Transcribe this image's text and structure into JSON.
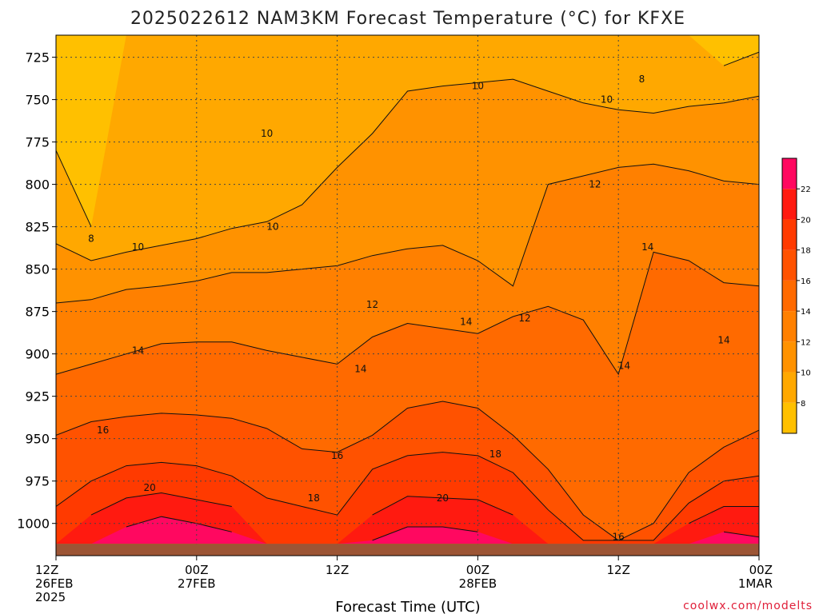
{
  "title": "2025022612 NAM3KM Forecast Temperature (°C) for KFXE",
  "credit": "coolwx.com/modelts",
  "chart_data": {
    "type": "heatmap",
    "title": "2025022612 NAM3KM Forecast Temperature (°C) for KFXE",
    "xlabel": "Forecast Time (UTC)",
    "ylabel": "",
    "x_ticks": [
      {
        "hour": 0,
        "line1": "12Z",
        "line2": "26FEB",
        "line3": "2025"
      },
      {
        "hour": 12,
        "line1": "00Z",
        "line2": "27FEB",
        "line3": ""
      },
      {
        "hour": 24,
        "line1": "12Z",
        "line2": "",
        "line3": ""
      },
      {
        "hour": 36,
        "line1": "00Z",
        "line2": "28FEB",
        "line3": ""
      },
      {
        "hour": 48,
        "line1": "12Z",
        "line2": "",
        "line3": ""
      },
      {
        "hour": 60,
        "line1": "00Z",
        "line2": "1MAR",
        "line3": ""
      }
    ],
    "xlim": [
      0,
      60
    ],
    "y_ticks": [
      725,
      750,
      775,
      800,
      825,
      850,
      875,
      900,
      925,
      950,
      975,
      1000
    ],
    "ylim": [
      1019,
      712
    ],
    "y_unit": "hPa",
    "grid": true,
    "colorbar": {
      "levels": [
        6,
        8,
        10,
        12,
        14,
        16,
        18,
        20,
        22,
        24
      ],
      "colors": [
        "#ffc000",
        "#ffa800",
        "#ff9200",
        "#ff8000",
        "#ff6a00",
        "#ff5200",
        "#ff3a00",
        "#ff1a10",
        "#ff0860"
      ],
      "labels": [
        8,
        10,
        12,
        14,
        16,
        18,
        20,
        22
      ]
    },
    "surface_pressure_hPa": 1012,
    "profile_hours": [
      0,
      3,
      6,
      9,
      12,
      15,
      18,
      21,
      24,
      27,
      30,
      33,
      36,
      39,
      42,
      45,
      48,
      51,
      54,
      57,
      60
    ],
    "isotherm_pressure_hPa": {
      "8": [
        780,
        825,
        null,
        null,
        null,
        null,
        null,
        null,
        null,
        null,
        null,
        null,
        null,
        null,
        null,
        null,
        null,
        null,
        null,
        730,
        722
      ],
      "10": [
        835,
        845,
        840,
        836,
        832,
        826,
        822,
        812,
        790,
        770,
        745,
        742,
        740,
        738,
        745,
        752,
        756,
        758,
        754,
        752,
        748
      ],
      "12": [
        870,
        868,
        862,
        860,
        857,
        852,
        852,
        850,
        848,
        842,
        838,
        836,
        845,
        860,
        800,
        795,
        790,
        788,
        792,
        798,
        800
      ],
      "14": [
        912,
        906,
        900,
        894,
        893,
        893,
        898,
        902,
        906,
        890,
        882,
        885,
        888,
        878,
        872,
        880,
        912,
        840,
        845,
        858,
        860
      ],
      "16": [
        948,
        940,
        937,
        935,
        936,
        938,
        944,
        956,
        958,
        948,
        932,
        928,
        932,
        948,
        968,
        995,
        1010,
        1000,
        970,
        955,
        945
      ],
      "18": [
        990,
        975,
        966,
        964,
        966,
        972,
        985,
        990,
        995,
        968,
        960,
        958,
        960,
        970,
        992,
        1010,
        1010,
        1010,
        988,
        975,
        972
      ],
      "20": [
        1012,
        995,
        985,
        982,
        986,
        990,
        1012,
        1012,
        1012,
        995,
        984,
        985,
        986,
        995,
        1012,
        1012,
        1012,
        1012,
        1000,
        990,
        990
      ],
      "22": [
        1012,
        1012,
        1002,
        996,
        1000,
        1005,
        1012,
        1012,
        1012,
        1010,
        1002,
        1002,
        1005,
        1012,
        1012,
        1012,
        1012,
        1012,
        1012,
        1005,
        1008
      ]
    },
    "contour_labels": [
      {
        "text": "8",
        "hour": 3.0,
        "p": 832
      },
      {
        "text": "8",
        "hour": 50.0,
        "p": 738
      },
      {
        "text": "10",
        "hour": 7.0,
        "p": 837
      },
      {
        "text": "10",
        "hour": 18.5,
        "p": 825
      },
      {
        "text": "10",
        "hour": 18.0,
        "p": 770
      },
      {
        "text": "10",
        "hour": 36.0,
        "p": 742
      },
      {
        "text": "10",
        "hour": 47.0,
        "p": 750
      },
      {
        "text": "12",
        "hour": 27.0,
        "p": 871
      },
      {
        "text": "12",
        "hour": 40.0,
        "p": 879
      },
      {
        "text": "12",
        "hour": 46.0,
        "p": 800
      },
      {
        "text": "14",
        "hour": 7.0,
        "p": 898
      },
      {
        "text": "14",
        "hour": 26.0,
        "p": 909
      },
      {
        "text": "14",
        "hour": 35.0,
        "p": 881
      },
      {
        "text": "14",
        "hour": 48.5,
        "p": 907
      },
      {
        "text": "14",
        "hour": 50.5,
        "p": 837
      },
      {
        "text": "14",
        "hour": 57.0,
        "p": 892
      },
      {
        "text": "16",
        "hour": 4.0,
        "p": 945
      },
      {
        "text": "16",
        "hour": 24.0,
        "p": 960
      },
      {
        "text": "16",
        "hour": 48.0,
        "p": 1008
      },
      {
        "text": "18",
        "hour": 22.0,
        "p": 985
      },
      {
        "text": "18",
        "hour": 37.5,
        "p": 959
      },
      {
        "text": "20",
        "hour": 8.0,
        "p": 979
      },
      {
        "text": "20",
        "hour": 33.0,
        "p": 985
      }
    ]
  }
}
